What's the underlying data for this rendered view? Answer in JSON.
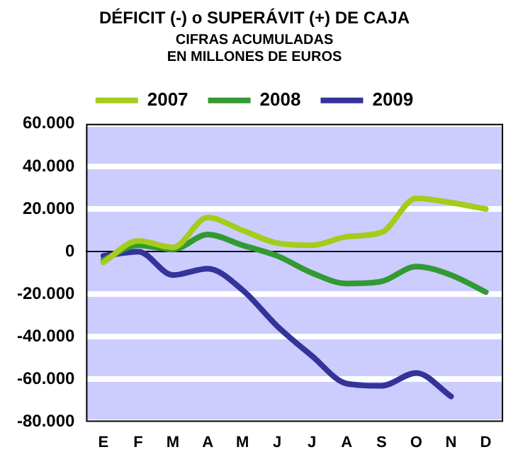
{
  "chart_data": {
    "type": "line",
    "title": "DÉFICIT (-) o SUPERÁVIT (+) DE CAJA",
    "subtitle": "CIFRAS ACUMULADAS\nEN MILLONES DE EUROS",
    "categories": [
      "E",
      "F",
      "M",
      "A",
      "M",
      "J",
      "J",
      "A",
      "S",
      "O",
      "N",
      "D"
    ],
    "series": [
      {
        "name": "2007",
        "color": "#a4cc1c",
        "values": [
          -5000,
          5000,
          2000,
          16000,
          10000,
          4000,
          3000,
          7000,
          9000,
          25000,
          23000,
          20000
        ]
      },
      {
        "name": "2008",
        "color": "#339933",
        "values": [
          -4000,
          3000,
          1000,
          8000,
          3000,
          -2000,
          -10000,
          -15000,
          -14000,
          -7000,
          -11000,
          -19000
        ]
      },
      {
        "name": "2009",
        "color": "#333399",
        "values": [
          -2000,
          0,
          -11000,
          -8000,
          -18000,
          -35000,
          -49000,
          -62000,
          -63000,
          -57000,
          -68000,
          null
        ]
      }
    ],
    "ylim": [
      -80000,
      60000
    ],
    "yticks": [
      {
        "value": -80000,
        "label": "-80.000"
      },
      {
        "value": -60000,
        "label": "-60.000"
      },
      {
        "value": -40000,
        "label": "-40.000"
      },
      {
        "value": -20000,
        "label": "-20.000"
      },
      0,
      {
        "value": 20000,
        "label": "20.000"
      },
      {
        "value": 40000,
        "label": "40.000"
      },
      {
        "value": 60000,
        "label": "60.000"
      }
    ],
    "grid": "y",
    "legend": "top",
    "marker": "none",
    "line_style": "solid"
  }
}
